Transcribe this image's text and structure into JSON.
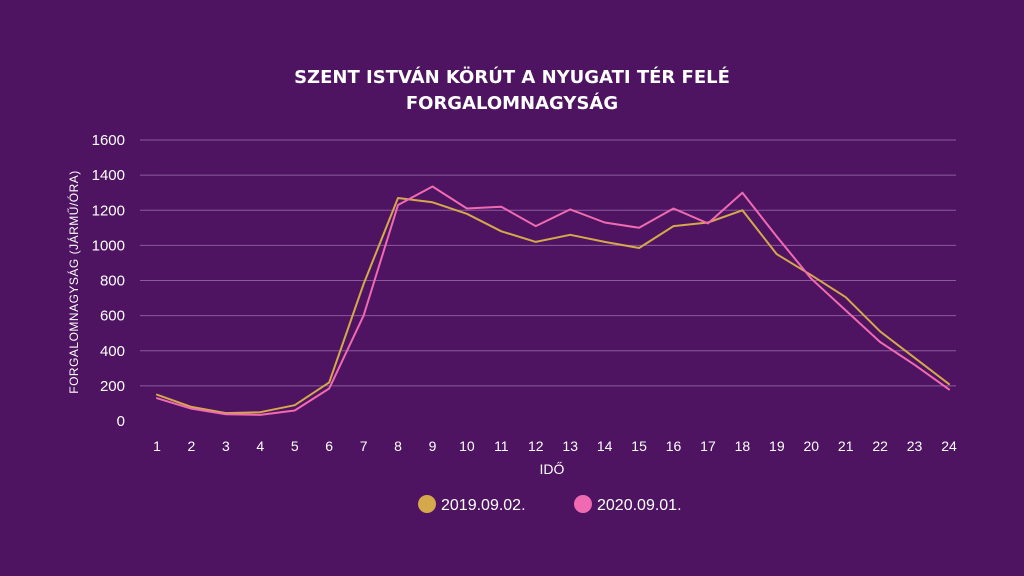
{
  "chart_data": {
    "type": "line",
    "title": [
      "SZENT ISTVÁN KÖRÚT A NYUGATI TÉR FELÉ",
      "FORGALOMNAGYSÁG"
    ],
    "xlabel": "IDŐ",
    "ylabel": "FORGALOMNAGYSÁG (JÁRMŰ/ÓRA)",
    "ylim": [
      0,
      1600
    ],
    "yticks": [
      "0",
      "200",
      "400",
      "600",
      "800",
      "1000",
      "1200",
      "1400",
      "1600"
    ],
    "categories": [
      "1",
      "2",
      "3",
      "4",
      "5",
      "6",
      "7",
      "8",
      "9",
      "10",
      "11",
      "12",
      "13",
      "14",
      "15",
      "16",
      "17",
      "18",
      "19",
      "20",
      "21",
      "22",
      "23",
      "24"
    ],
    "grid": true,
    "legend_position": "bottom",
    "series": [
      {
        "name": "2019.09.02.",
        "color": "#d4a84b",
        "values": [
          150,
          80,
          45,
          50,
          90,
          220,
          780,
          1270,
          1245,
          1180,
          1080,
          1020,
          1060,
          1020,
          985,
          1110,
          1130,
          1200,
          950,
          830,
          705,
          510,
          360,
          210
        ]
      },
      {
        "name": "2020.09.01.",
        "color": "#f06ab2",
        "values": [
          130,
          70,
          38,
          35,
          60,
          185,
          600,
          1230,
          1335,
          1210,
          1220,
          1110,
          1205,
          1130,
          1100,
          1210,
          1125,
          1300,
          1050,
          810,
          630,
          450,
          320,
          180
        ]
      }
    ]
  }
}
